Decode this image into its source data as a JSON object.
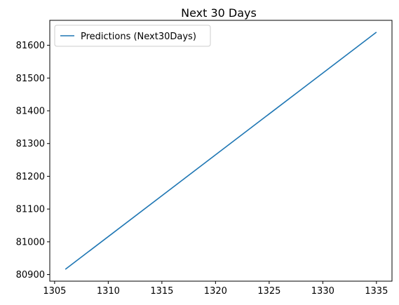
{
  "chart_data": {
    "type": "line",
    "title": "Next 30 Days",
    "xlabel": "",
    "ylabel": "",
    "series": [
      {
        "name": "Predictions (Next30Days)",
        "color": "#1f77b4",
        "x": [
          1306,
          1335
        ],
        "y": [
          80916,
          81640
        ]
      }
    ],
    "x_ticks": [
      1305,
      1310,
      1315,
      1320,
      1325,
      1330,
      1335
    ],
    "y_ticks": [
      80900,
      81000,
      81100,
      81200,
      81300,
      81400,
      81500,
      81600
    ],
    "xlim": [
      1304.55,
      1336.45
    ],
    "ylim": [
      80879.8,
      81676.2
    ],
    "grid": false,
    "legend_position": "top-left"
  }
}
